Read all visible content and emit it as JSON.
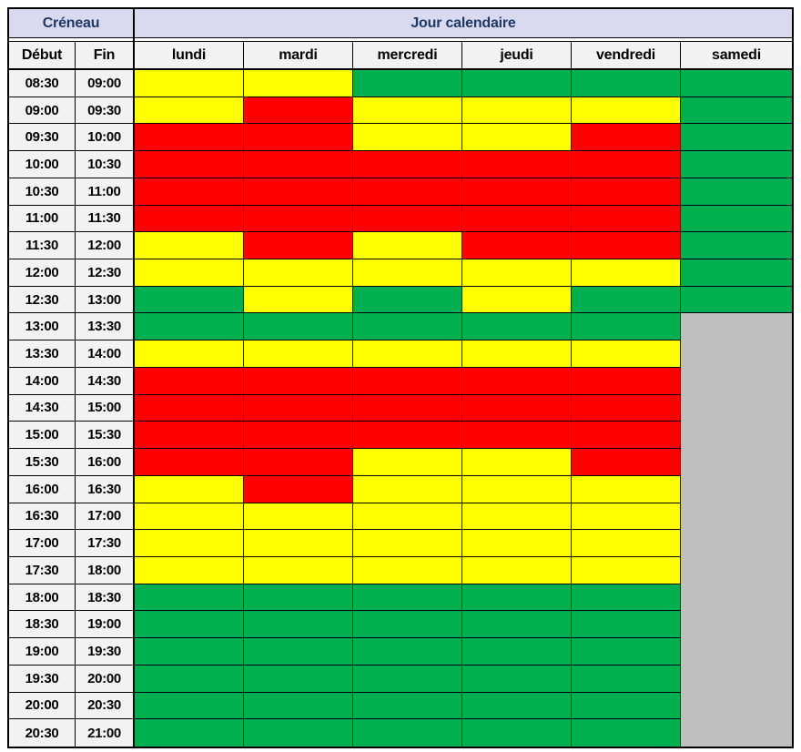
{
  "chart_data": {
    "type": "heatmap",
    "title": "",
    "header": {
      "creneau": "Créneau",
      "jour": "Jour calendaire",
      "debut": "Début",
      "fin": "Fin",
      "days": [
        "lundi",
        "mardi",
        "mercredi",
        "jeudi",
        "vendredi",
        "samedi"
      ]
    },
    "color_map": {
      "Y": "#FFFF00",
      "R": "#FF0000",
      "G": "#00B050",
      "X": "#BFBFBF"
    },
    "rows": [
      {
        "debut": "08:30",
        "fin": "09:00",
        "cells": [
          "Y",
          "Y",
          "G",
          "G",
          "G",
          "G"
        ]
      },
      {
        "debut": "09:00",
        "fin": "09:30",
        "cells": [
          "Y",
          "R",
          "Y",
          "Y",
          "Y",
          "G"
        ]
      },
      {
        "debut": "09:30",
        "fin": "10:00",
        "cells": [
          "R",
          "R",
          "Y",
          "Y",
          "R",
          "G"
        ]
      },
      {
        "debut": "10:00",
        "fin": "10:30",
        "cells": [
          "R",
          "R",
          "R",
          "R",
          "R",
          "G"
        ]
      },
      {
        "debut": "10:30",
        "fin": "11:00",
        "cells": [
          "R",
          "R",
          "R",
          "R",
          "R",
          "G"
        ]
      },
      {
        "debut": "11:00",
        "fin": "11:30",
        "cells": [
          "R",
          "R",
          "R",
          "R",
          "R",
          "G"
        ]
      },
      {
        "debut": "11:30",
        "fin": "12:00",
        "cells": [
          "Y",
          "R",
          "Y",
          "R",
          "R",
          "G"
        ]
      },
      {
        "debut": "12:00",
        "fin": "12:30",
        "cells": [
          "Y",
          "Y",
          "Y",
          "Y",
          "Y",
          "G"
        ]
      },
      {
        "debut": "12:30",
        "fin": "13:00",
        "cells": [
          "G",
          "Y",
          "G",
          "Y",
          "G",
          "G"
        ]
      },
      {
        "debut": "13:00",
        "fin": "13:30",
        "cells": [
          "G",
          "G",
          "G",
          "G",
          "G",
          "X"
        ]
      },
      {
        "debut": "13:30",
        "fin": "14:00",
        "cells": [
          "Y",
          "Y",
          "Y",
          "Y",
          "Y",
          "X"
        ]
      },
      {
        "debut": "14:00",
        "fin": "14:30",
        "cells": [
          "R",
          "R",
          "R",
          "R",
          "R",
          "X"
        ]
      },
      {
        "debut": "14:30",
        "fin": "15:00",
        "cells": [
          "R",
          "R",
          "R",
          "R",
          "R",
          "X"
        ]
      },
      {
        "debut": "15:00",
        "fin": "15:30",
        "cells": [
          "R",
          "R",
          "R",
          "R",
          "R",
          "X"
        ]
      },
      {
        "debut": "15:30",
        "fin": "16:00",
        "cells": [
          "R",
          "R",
          "Y",
          "Y",
          "R",
          "X"
        ]
      },
      {
        "debut": "16:00",
        "fin": "16:30",
        "cells": [
          "Y",
          "R",
          "Y",
          "Y",
          "Y",
          "X"
        ]
      },
      {
        "debut": "16:30",
        "fin": "17:00",
        "cells": [
          "Y",
          "Y",
          "Y",
          "Y",
          "Y",
          "X"
        ]
      },
      {
        "debut": "17:00",
        "fin": "17:30",
        "cells": [
          "Y",
          "Y",
          "Y",
          "Y",
          "Y",
          "X"
        ]
      },
      {
        "debut": "17:30",
        "fin": "18:00",
        "cells": [
          "Y",
          "Y",
          "Y",
          "Y",
          "Y",
          "X"
        ]
      },
      {
        "debut": "18:00",
        "fin": "18:30",
        "cells": [
          "G",
          "G",
          "G",
          "G",
          "G",
          "X"
        ]
      },
      {
        "debut": "18:30",
        "fin": "19:00",
        "cells": [
          "G",
          "G",
          "G",
          "G",
          "G",
          "X"
        ]
      },
      {
        "debut": "19:00",
        "fin": "19:30",
        "cells": [
          "G",
          "G",
          "G",
          "G",
          "G",
          "X"
        ]
      },
      {
        "debut": "19:30",
        "fin": "20:00",
        "cells": [
          "G",
          "G",
          "G",
          "G",
          "G",
          "X"
        ]
      },
      {
        "debut": "20:00",
        "fin": "20:30",
        "cells": [
          "G",
          "G",
          "G",
          "G",
          "G",
          "X"
        ]
      },
      {
        "debut": "20:30",
        "fin": "21:00",
        "cells": [
          "G",
          "G",
          "G",
          "G",
          "G",
          "X"
        ]
      }
    ]
  }
}
